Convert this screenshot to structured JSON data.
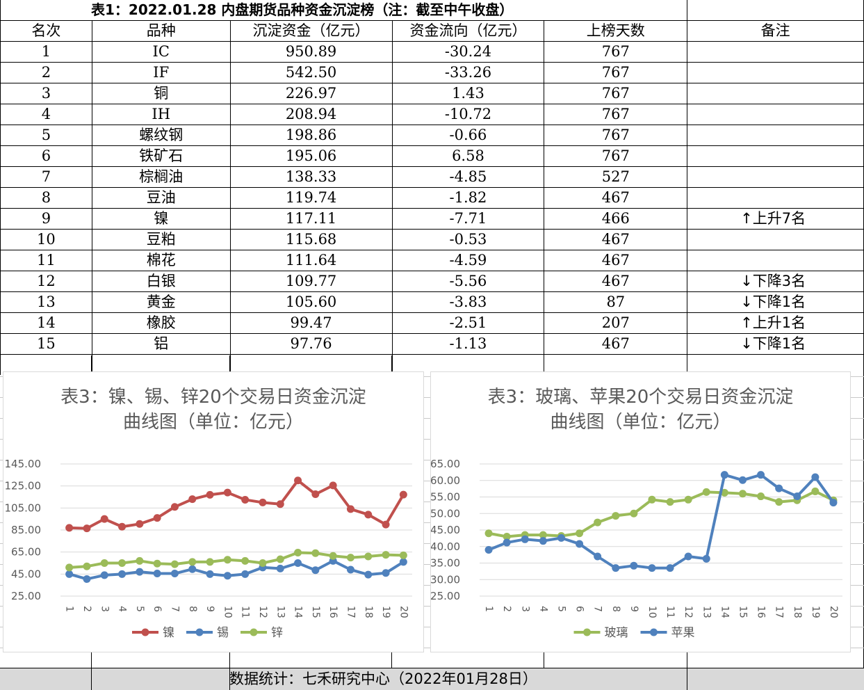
{
  "table": {
    "title": "表1：2022.01.28 内盘期货品种资金沉淀榜（注：截至中午收盘）",
    "headers": [
      "名次",
      "品种",
      "沉淀资金（亿元）",
      "资金流向（亿元）",
      "上榜天数",
      "备注"
    ],
    "rows": [
      {
        "rank": "1",
        "name": "IC",
        "fund": "950.89",
        "flow": "-30.24",
        "days": "767",
        "note": ""
      },
      {
        "rank": "2",
        "name": "IF",
        "fund": "542.50",
        "flow": "-33.26",
        "days": "767",
        "note": ""
      },
      {
        "rank": "3",
        "name": "铜",
        "fund": "226.97",
        "flow": "1.43",
        "days": "767",
        "note": ""
      },
      {
        "rank": "4",
        "name": "IH",
        "fund": "208.94",
        "flow": "-10.72",
        "days": "767",
        "note": ""
      },
      {
        "rank": "5",
        "name": "螺纹钢",
        "fund": "198.86",
        "flow": "-0.66",
        "days": "767",
        "note": ""
      },
      {
        "rank": "6",
        "name": "铁矿石",
        "fund": "195.06",
        "flow": "6.58",
        "days": "767",
        "note": ""
      },
      {
        "rank": "7",
        "name": "棕榈油",
        "fund": "138.33",
        "flow": "-4.85",
        "days": "527",
        "note": ""
      },
      {
        "rank": "8",
        "name": "豆油",
        "fund": "119.74",
        "flow": "-1.82",
        "days": "467",
        "note": ""
      },
      {
        "rank": "9",
        "name": "镍",
        "fund": "117.11",
        "flow": "-7.71",
        "days": "466",
        "note": "↑上升7名"
      },
      {
        "rank": "10",
        "name": "豆粕",
        "fund": "115.68",
        "flow": "-0.53",
        "days": "467",
        "note": ""
      },
      {
        "rank": "11",
        "name": "棉花",
        "fund": "111.64",
        "flow": "-4.59",
        "days": "467",
        "note": ""
      },
      {
        "rank": "12",
        "name": "白银",
        "fund": "109.77",
        "flow": "-5.56",
        "days": "467",
        "note": "↓下降3名"
      },
      {
        "rank": "13",
        "name": "黄金",
        "fund": "105.60",
        "flow": "-3.83",
        "days": "87",
        "note": "↓下降1名"
      },
      {
        "rank": "14",
        "name": "橡胶",
        "fund": "99.47",
        "flow": "-2.51",
        "days": "207",
        "note": "↑上升1名"
      },
      {
        "rank": "15",
        "name": "铝",
        "fund": "97.76",
        "flow": "-1.13",
        "days": "467",
        "note": "↓下降1名"
      }
    ]
  },
  "footer": {
    "text": "数据统计：七禾研究中心（2022年01月28日）"
  },
  "colors": {
    "red": "#c0504d",
    "blue": "#4f81bd",
    "green": "#9bbb59",
    "grid": "#d9d9d9",
    "axis_text": "#595959"
  },
  "chart_data": [
    {
      "type": "line",
      "title_lines": [
        "表3：镍、锡、锌20个交易日资金沉淀",
        "曲线图（单位：亿元）"
      ],
      "x": [
        "1",
        "2",
        "3",
        "4",
        "5",
        "6",
        "7",
        "8",
        "9",
        "10",
        "11",
        "12",
        "13",
        "14",
        "15",
        "16",
        "17",
        "18",
        "19",
        "20"
      ],
      "yticks": [
        "25.00",
        "45.00",
        "65.00",
        "85.00",
        "105.00",
        "125.00",
        "145.00"
      ],
      "ylim": [
        25,
        145
      ],
      "legend_position": "bottom",
      "grid": true,
      "series": [
        {
          "name": "镍",
          "color": "#c0504d",
          "values": [
            87,
            86.5,
            95,
            88,
            90.5,
            96,
            106,
            113,
            117,
            119,
            112.5,
            110,
            108.5,
            130,
            117.5,
            125.5,
            104,
            99,
            90,
            117.11
          ]
        },
        {
          "name": "锡",
          "color": "#4f81bd",
          "values": [
            45,
            40.5,
            44,
            45,
            47,
            45.5,
            45.5,
            49.5,
            45,
            43.5,
            45,
            51,
            50,
            55,
            48.5,
            57,
            49,
            44.5,
            46,
            56
          ]
        },
        {
          "name": "锌",
          "color": "#9bbb59",
          "values": [
            51,
            52,
            55,
            55,
            57,
            54.5,
            54,
            56,
            56,
            58,
            57,
            55,
            58.5,
            64.5,
            64,
            61.5,
            60,
            61,
            62.5,
            62
          ]
        }
      ]
    },
    {
      "type": "line",
      "title_lines": [
        "表3：玻璃、苹果20个交易日资金沉淀",
        "曲线图（单位：亿元）"
      ],
      "x": [
        "1",
        "2",
        "3",
        "4",
        "5",
        "6",
        "7",
        "8",
        "9",
        "10",
        "11",
        "12",
        "13",
        "14",
        "15",
        "16",
        "17",
        "18",
        "19",
        "20"
      ],
      "yticks": [
        "25.00",
        "30.00",
        "35.00",
        "40.00",
        "45.00",
        "50.00",
        "55.00",
        "60.00",
        "65.00"
      ],
      "ylim": [
        25,
        65
      ],
      "legend_position": "bottom",
      "grid": true,
      "series": [
        {
          "name": "玻璃",
          "color": "#9bbb59",
          "values": [
            44,
            43,
            43.5,
            43.5,
            43.2,
            44,
            47.3,
            49.3,
            50,
            54.2,
            53.5,
            54.2,
            56.5,
            56.3,
            56,
            55.2,
            53.5,
            54,
            56.7,
            54
          ]
        },
        {
          "name": "苹果",
          "color": "#4f81bd",
          "values": [
            39,
            41.2,
            42.2,
            41.7,
            42.6,
            40.8,
            37,
            33.5,
            34.2,
            33.5,
            33.5,
            37,
            36.3,
            61.7,
            60.1,
            61.7,
            57.6,
            55.2,
            61,
            53.3
          ]
        }
      ]
    }
  ]
}
